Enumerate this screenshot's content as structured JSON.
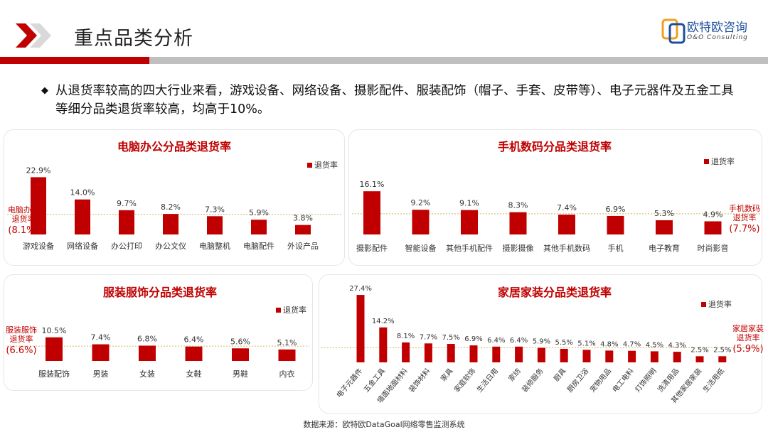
{
  "header": {
    "title": "重点品类分析",
    "logo_text": "欧特欧咨询",
    "logo_sub": "O&O Consulting",
    "accent_color": "#c00000"
  },
  "description": "从退货率较高的四大行业来看，游戏设备、网络设备、摄影配件、服装配饰（帽子、手套、皮带等）、电子元器件及五金工具等细分品类退货率较高，均高于10%。",
  "chart_data": [
    {
      "type": "bar",
      "title": "电脑办公分品类退货率",
      "legend": "退货率",
      "categories": [
        "游戏设备",
        "网络设备",
        "办公打印",
        "办公文仪",
        "电脑整机",
        "电脑配件",
        "外设产品"
      ],
      "values": [
        22.9,
        14.0,
        9.7,
        8.2,
        7.3,
        5.9,
        3.8
      ],
      "labels": [
        "22.9%",
        "14.0%",
        "9.7%",
        "8.2%",
        "7.3%",
        "5.9%",
        "3.8%"
      ],
      "ylim": [
        0,
        25
      ],
      "avg": {
        "name": [
          "电脑办公",
          "退货率"
        ],
        "value": 8.1,
        "label": "(8.1%)",
        "side": "left"
      }
    },
    {
      "type": "bar",
      "title": "手机数码分品类退货率",
      "legend": "退货率",
      "categories": [
        "摄影配件",
        "智能设备",
        "其他手机配件",
        "摄影摄像",
        "其他手机数码",
        "手机",
        "电子教育",
        "时尚影音"
      ],
      "values": [
        16.1,
        9.2,
        9.1,
        8.3,
        7.4,
        6.9,
        5.3,
        4.9
      ],
      "labels": [
        "16.1%",
        "9.2%",
        "9.1%",
        "8.3%",
        "7.4%",
        "6.9%",
        "5.3%",
        "4.9%"
      ],
      "ylim": [
        0,
        18
      ],
      "avg": {
        "name": [
          "手机数码",
          "退货率"
        ],
        "value": 7.7,
        "label": "(7.7%)",
        "side": "right"
      }
    },
    {
      "type": "bar",
      "title": "服装服饰分品类退货率",
      "legend": "退货率",
      "categories": [
        "服装配饰",
        "男装",
        "女装",
        "女鞋",
        "男鞋",
        "内衣"
      ],
      "values": [
        10.5,
        7.4,
        6.8,
        6.4,
        5.6,
        5.1
      ],
      "labels": [
        "10.5%",
        "7.4%",
        "6.8%",
        "6.4%",
        "5.6%",
        "5.1%"
      ],
      "ylim": [
        0,
        12
      ],
      "avg": {
        "name": [
          "服装服饰",
          "退货率"
        ],
        "value": 6.6,
        "label": "(6.6%)",
        "side": "left"
      }
    },
    {
      "type": "bar",
      "title": "家居家装分品类退货率",
      "legend": "退货率",
      "categories": [
        "电子元器件",
        "五金工具",
        "墙面地面材料",
        "装饰材料",
        "家具",
        "家庭软饰",
        "生活日用",
        "家纺",
        "装修服务",
        "厨具",
        "厨房卫浴",
        "宠物用品",
        "电工电料",
        "灯饰照明",
        "洗清用品",
        "其他家居家装",
        "生活用纸"
      ],
      "values": [
        27.4,
        14.2,
        8.1,
        7.7,
        7.5,
        6.9,
        6.4,
        6.4,
        5.9,
        5.5,
        5.1,
        4.8,
        4.7,
        4.5,
        4.3,
        2.5,
        2.5
      ],
      "labels": [
        "27.4%",
        "14.2%",
        "8.1%",
        "7.7%",
        "7.5%",
        "6.9%",
        "6.4%",
        "6.4%",
        "5.9%",
        "5.5%",
        "5.1%",
        "4.8%",
        "4.7%",
        "4.5%",
        "4.3%",
        "2.5%",
        "2.5%"
      ],
      "ylim": [
        0,
        28
      ],
      "avg": {
        "name": [
          "家居家装",
          "退货率"
        ],
        "value": 5.9,
        "label": "(5.9%)",
        "side": "right"
      }
    }
  ],
  "footer": {
    "source": "数据来源：欧特欧DataGoal网络零售监测系统"
  }
}
